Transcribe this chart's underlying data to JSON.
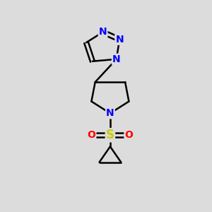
{
  "background_color": "#dcdcdc",
  "bond_color": "#000000",
  "bond_width": 1.8,
  "atom_colors": {
    "N": "#0000ff",
    "S": "#cccc00",
    "O": "#ff0000",
    "C": "#000000"
  },
  "font_size": 10,
  "figsize": [
    3.0,
    3.0
  ],
  "dpi": 100,
  "xlim": [
    0,
    10
  ],
  "ylim": [
    0,
    10
  ]
}
